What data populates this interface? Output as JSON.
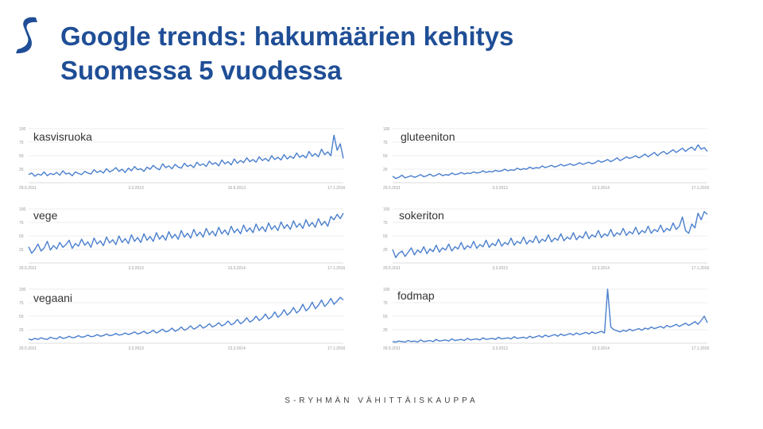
{
  "header": {
    "title_line1": "Google trends: hakumäärien kehitys",
    "title_line2": "Suomessa 5 vuodessa"
  },
  "brand": {
    "logo_name": "s-group-logo-icon",
    "color": "#1f4e96"
  },
  "footer": {
    "text": "S-RYHMÄN VÄHITTÄISKAUPPA"
  },
  "chart_data": [
    {
      "type": "line",
      "title": "kasvisruoka",
      "yticks": [
        "100",
        "75",
        "50",
        "25"
      ],
      "ylim": [
        0,
        100
      ],
      "xticks": [
        "29.5.2011",
        "3.3.2013",
        "16.6.2013",
        "17.1.2016"
      ],
      "series": [
        {
          "color": "#4a7fce",
          "values": [
            15,
            18,
            12,
            16,
            14,
            20,
            13,
            17,
            15,
            19,
            14,
            22,
            16,
            18,
            13,
            20,
            17,
            15,
            21,
            18,
            16,
            24,
            19,
            22,
            18,
            26,
            20,
            23,
            28,
            21,
            25,
            19,
            27,
            22,
            30,
            24,
            26,
            21,
            29,
            25,
            32,
            27,
            24,
            35,
            28,
            31,
            26,
            34,
            29,
            27,
            36,
            30,
            33,
            28,
            38,
            32,
            35,
            30,
            40,
            34,
            37,
            31,
            42,
            35,
            39,
            33,
            44,
            36,
            41,
            37,
            46,
            39,
            43,
            38,
            48,
            41,
            45,
            40,
            50,
            43,
            47,
            42,
            52,
            44,
            49,
            45,
            55,
            47,
            51,
            46,
            58,
            49,
            54,
            48,
            62,
            52,
            57,
            50,
            88,
            60,
            72,
            45
          ]
        }
      ]
    },
    {
      "type": "line",
      "title": "gluteeniton",
      "yticks": [
        "100",
        "75",
        "50",
        "25"
      ],
      "ylim": [
        0,
        100
      ],
      "xticks": [
        "29.5.2011",
        "3.3.2013",
        "13.3.2014",
        "17.1.2016"
      ],
      "series": [
        {
          "color": "#4a7fce",
          "values": [
            12,
            8,
            10,
            14,
            9,
            11,
            13,
            10,
            12,
            15,
            11,
            13,
            16,
            12,
            14,
            17,
            13,
            15,
            14,
            18,
            15,
            16,
            19,
            16,
            18,
            17,
            20,
            18,
            19,
            22,
            19,
            21,
            20,
            23,
            21,
            22,
            25,
            22,
            24,
            23,
            27,
            24,
            26,
            25,
            29,
            26,
            28,
            27,
            31,
            28,
            30,
            32,
            29,
            31,
            34,
            31,
            33,
            35,
            32,
            34,
            37,
            34,
            36,
            38,
            35,
            37,
            41,
            38,
            40,
            43,
            39,
            42,
            46,
            41,
            44,
            48,
            45,
            47,
            50,
            46,
            49,
            53,
            48,
            52,
            56,
            50,
            55,
            58,
            53,
            57,
            61,
            56,
            60,
            64,
            58,
            63,
            66,
            60,
            70,
            62,
            65,
            58
          ]
        }
      ]
    },
    {
      "type": "line",
      "title": "vege",
      "yticks": [
        "100",
        "75",
        "50",
        "25"
      ],
      "ylim": [
        0,
        100
      ],
      "xticks": [
        "29.5.2011",
        "3.3.2013",
        "13.3.2014",
        "17.1.2016"
      ],
      "series": [
        {
          "color": "#4a7fce",
          "values": [
            30,
            18,
            25,
            35,
            22,
            28,
            40,
            24,
            32,
            26,
            38,
            29,
            34,
            42,
            27,
            36,
            31,
            44,
            33,
            39,
            29,
            46,
            35,
            41,
            32,
            48,
            37,
            43,
            34,
            50,
            38,
            45,
            36,
            52,
            40,
            47,
            38,
            54,
            42,
            49,
            40,
            56,
            44,
            51,
            42,
            58,
            46,
            53,
            44,
            60,
            48,
            55,
            46,
            62,
            50,
            57,
            48,
            64,
            52,
            59,
            50,
            66,
            54,
            61,
            52,
            68,
            56,
            63,
            54,
            70,
            58,
            65,
            56,
            72,
            60,
            67,
            58,
            74,
            62,
            69,
            60,
            76,
            64,
            71,
            62,
            78,
            66,
            73,
            64,
            80,
            68,
            75,
            66,
            82,
            70,
            77,
            68,
            86,
            80,
            90,
            82,
            92
          ]
        }
      ]
    },
    {
      "type": "line",
      "title": "sokeriton",
      "yticks": [
        "100",
        "75",
        "50",
        "25"
      ],
      "ylim": [
        0,
        100
      ],
      "xticks": [
        "29.5.2011",
        "3.3.2013",
        "13.3.2014",
        "17.1.2016"
      ],
      "series": [
        {
          "color": "#4a7fce",
          "values": [
            25,
            10,
            18,
            22,
            12,
            20,
            28,
            15,
            24,
            19,
            30,
            17,
            26,
            21,
            33,
            20,
            28,
            24,
            35,
            22,
            30,
            26,
            38,
            25,
            32,
            28,
            40,
            27,
            34,
            30,
            42,
            29,
            36,
            32,
            44,
            31,
            38,
            34,
            46,
            33,
            40,
            36,
            48,
            35,
            42,
            38,
            50,
            37,
            44,
            40,
            52,
            39,
            46,
            42,
            54,
            41,
            48,
            44,
            56,
            43,
            50,
            46,
            58,
            45,
            52,
            48,
            60,
            47,
            54,
            50,
            62,
            49,
            56,
            52,
            64,
            51,
            58,
            54,
            66,
            53,
            60,
            56,
            68,
            55,
            62,
            58,
            70,
            57,
            64,
            60,
            74,
            62,
            68,
            85,
            60,
            55,
            72,
            65,
            92,
            80,
            95,
            90
          ]
        }
      ]
    },
    {
      "type": "line",
      "title": "vegaani",
      "yticks": [
        "100",
        "75",
        "50",
        "25"
      ],
      "ylim": [
        0,
        100
      ],
      "xticks": [
        "29.5.2011",
        "3.3.2013",
        "13.3.2014",
        "17.1.2016"
      ],
      "series": [
        {
          "color": "#4a7fce",
          "values": [
            8,
            6,
            9,
            7,
            10,
            8,
            7,
            11,
            9,
            8,
            12,
            9,
            10,
            13,
            10,
            11,
            14,
            11,
            12,
            15,
            12,
            13,
            16,
            13,
            14,
            17,
            14,
            15,
            18,
            15,
            16,
            19,
            16,
            18,
            21,
            17,
            19,
            22,
            18,
            20,
            24,
            19,
            22,
            26,
            21,
            23,
            28,
            22,
            25,
            30,
            24,
            27,
            32,
            26,
            29,
            34,
            28,
            31,
            36,
            30,
            33,
            38,
            32,
            35,
            41,
            34,
            37,
            44,
            36,
            40,
            47,
            39,
            43,
            50,
            42,
            46,
            54,
            45,
            49,
            58,
            48,
            53,
            62,
            52,
            57,
            66,
            56,
            61,
            72,
            60,
            65,
            76,
            64,
            70,
            80,
            68,
            74,
            83,
            72,
            78,
            85,
            80
          ]
        }
      ]
    },
    {
      "type": "line",
      "title": "fodmap",
      "yticks": [
        "100",
        "75",
        "50",
        "25"
      ],
      "ylim": [
        0,
        100
      ],
      "xticks": [
        "29.5.2011",
        "3.3.2013",
        "13.3.2014",
        "17.1.2016"
      ],
      "series": [
        {
          "color": "#4a7fce",
          "values": [
            3,
            2,
            4,
            3,
            2,
            5,
            3,
            4,
            2,
            6,
            3,
            4,
            5,
            3,
            7,
            4,
            5,
            6,
            4,
            8,
            5,
            6,
            7,
            5,
            9,
            6,
            7,
            8,
            6,
            10,
            7,
            8,
            9,
            7,
            11,
            8,
            9,
            10,
            8,
            12,
            9,
            10,
            11,
            9,
            13,
            10,
            12,
            14,
            11,
            15,
            12,
            14,
            16,
            13,
            17,
            14,
            16,
            18,
            15,
            19,
            16,
            18,
            20,
            17,
            21,
            18,
            20,
            22,
            19,
            100,
            30,
            25,
            23,
            21,
            24,
            22,
            26,
            23,
            25,
            27,
            24,
            28,
            26,
            30,
            27,
            29,
            31,
            28,
            33,
            30,
            32,
            35,
            31,
            34,
            37,
            33,
            36,
            40,
            35,
            42,
            50,
            38
          ]
        }
      ]
    }
  ]
}
